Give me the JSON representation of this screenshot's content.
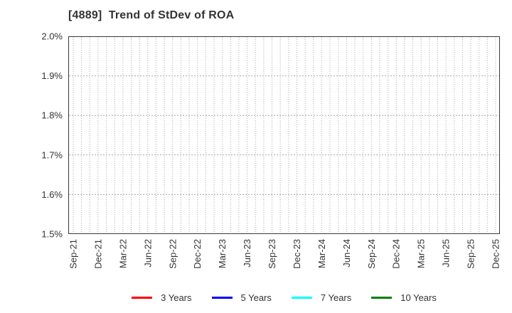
{
  "chart_data": {
    "type": "line",
    "title": "[4889]  Trend of StDev of ROA",
    "x_tick_labels": [
      "Sep-21",
      "Dec-21",
      "Mar-22",
      "Jun-22",
      "Sep-22",
      "Dec-22",
      "Mar-23",
      "Jun-23",
      "Sep-23",
      "Dec-23",
      "Mar-24",
      "Jun-24",
      "Sep-24",
      "Dec-24",
      "Mar-25",
      "Jun-25",
      "Sep-25",
      "Dec-25"
    ],
    "x_axis_total_months": 52,
    "months_per_label": 3,
    "y_tick_labels": [
      "2.0%",
      "1.9%",
      "1.8%",
      "1.7%",
      "1.6%",
      "1.5%"
    ],
    "ylim": [
      1.5,
      2.0
    ],
    "y_unit": "percent",
    "grid": true,
    "legend_position": "bottom",
    "series": [
      {
        "name": "3 Years",
        "color": "#ff0000",
        "values": []
      },
      {
        "name": "5 Years",
        "color": "#0000ff",
        "values": []
      },
      {
        "name": "7 Years",
        "color": "#00ffff",
        "values": []
      },
      {
        "name": "10 Years",
        "color": "#008000",
        "values": []
      }
    ]
  },
  "colors": {
    "background": "#ffffff",
    "frame": "#3b3b3b",
    "grid": "#aaaaaa",
    "text": "#333333"
  }
}
